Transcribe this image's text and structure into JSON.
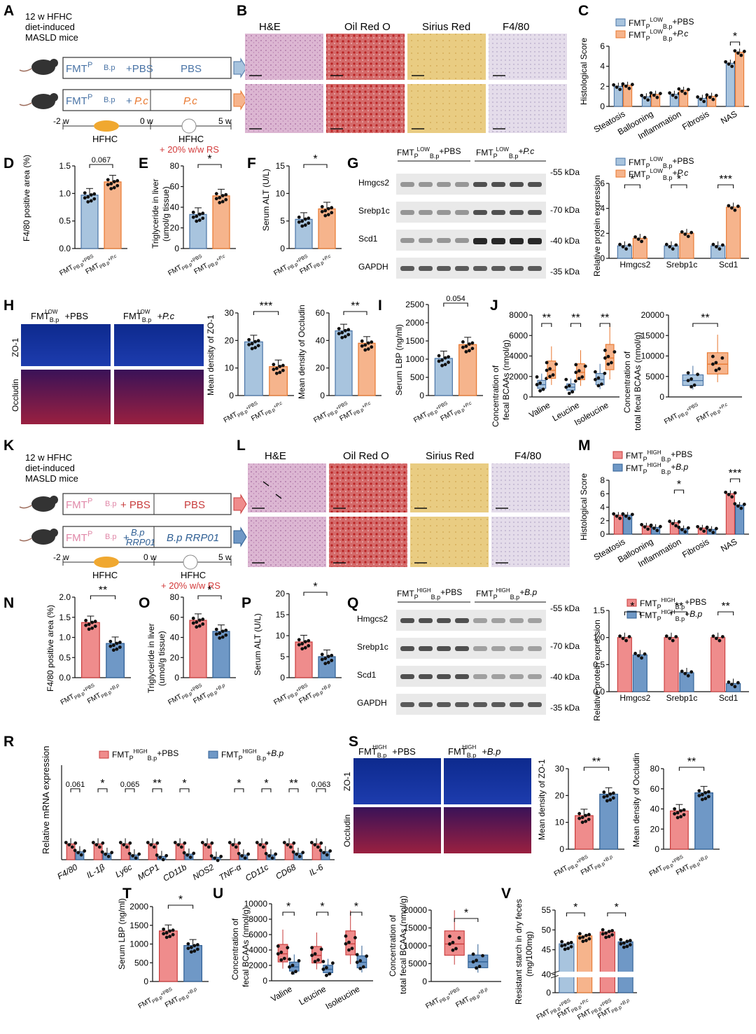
{
  "colors": {
    "blue_fill": "#a8c4de",
    "blue_dark": "#4a74a6",
    "orange_fill": "#f6b48c",
    "orange_dark": "#e8772e",
    "red_fill": "#ef8c8c",
    "red_dark": "#c83c3c",
    "steel_fill": "#6f98c6",
    "steel_dark": "#2f5f94"
  },
  "panels": {
    "A": "A",
    "B": "B",
    "C": "C",
    "D": "D",
    "E": "E",
    "F": "F",
    "G": "G",
    "H": "H",
    "I": "I",
    "J": "J",
    "K": "K",
    "L": "L",
    "M": "M",
    "N": "N",
    "O": "O",
    "P": "P",
    "Q": "Q",
    "R": "R",
    "S": "S",
    "T": "T",
    "U": "U",
    "V": "V"
  },
  "schema_top": {
    "mice_desc_1": "12 w HFHC",
    "mice_desc_2": "diet-induced",
    "mice_desc_3": "MASLD mice",
    "group1_fmt": "FMT",
    "group1_sup": "LOW",
    "group1_sub": "P",
    "group1_sup2": "LOW",
    "group1_sub2": "B.p",
    "group1_add": "+PBS",
    "group1_treat": "PBS",
    "group2_add": "+ ",
    "group2_pc": "P.c",
    "group2_treat": "P.c",
    "t_m2": "-2 w",
    "t_0": "0 w",
    "t_5": "5 w",
    "diet1": "HFHC",
    "diet2": "HFHC",
    "diet2_rs": "+ 20% w/w RS"
  },
  "schema_bottom": {
    "mice_desc_1": "12 w HFHC",
    "mice_desc_2": "diet-induced",
    "mice_desc_3": "MASLD mice",
    "group1_add": "+ PBS",
    "group1_treat": "PBS",
    "group2_add": "+",
    "group2_bp": "B.p",
    "group2_rrp": "RRP01",
    "group2_treat": "B.p RRP01",
    "t_m2": "-2 w",
    "t_0": "0 w",
    "t_5": "5 w",
    "diet1": "HFHC",
    "diet2": "HFHC",
    "diet2_rs": "+ 20% w/w RS"
  },
  "histology_headers": [
    "H&E",
    "Oil Red O",
    "Sirius Red",
    "F4/80"
  ],
  "labels": {
    "fmt": "FMT",
    "p": "P",
    "bp": "B.p",
    "low": "LOW",
    "high": "HIGH",
    "plus_pbs": "+PBS",
    "plus_pc": "+P.c",
    "plus_bp": "+B.p",
    "zo1": "ZO-1",
    "occludin": "Occludin",
    "kda55": "-55 kDa",
    "kda70": "-70 kDa",
    "kda40": "-40 kDa",
    "kda35": "-35 kDa",
    "hmgcs2": "Hmgcs2",
    "srebp1c": "Srebp1c",
    "scd1": "Scd1",
    "gapdh": "GAPDH"
  },
  "y_titles": {
    "histological_score": "Histological Score",
    "f480_area": "F4/80 positive area (%)",
    "tg_liver_1": "Triglyceride in liver",
    "tg_liver_2": "(umol/g tissue)",
    "tg_liver_bottom": "(umol/g tissue)",
    "serum_alt": "Serum ALT (U/L)",
    "rel_protein": "Relative protein expression",
    "zo1_density": "Mean density of ZO-1",
    "occludin_density": "Mean density of Occludin",
    "serum_lbp": "Serum LBP (ng/ml)",
    "fecal_bcaa_1": "Concentration of",
    "fecal_bcaa_2": "fecal BCAAs (nmol/g)",
    "total_bcaa_1": "Concentration of",
    "total_bcaa_2": "total fecal BCAAs (nmol/g)",
    "rel_mrna": "Relative mRNA expression",
    "rs_1": "Resistant starch in dry feces",
    "rs_2": "(mg/100mg)"
  },
  "chart_data": [
    {
      "panel": "C",
      "type": "bar",
      "categories": [
        "Steatosis",
        "Ballooning",
        "Inflammation",
        "Fibrosis",
        "NAS"
      ],
      "series": [
        {
          "values": [
            2.0,
            0.95,
            1.2,
            0.8,
            4.3
          ]
        },
        {
          "values": [
            2.1,
            1.2,
            1.6,
            1.0,
            5.4
          ]
        }
      ],
      "ylim": [
        0,
        6
      ],
      "yticks": [
        0,
        2,
        4,
        6
      ],
      "sig": [
        "*"
      ]
    },
    {
      "panel": "D",
      "type": "bar",
      "values": [
        0.97,
        1.21
      ],
      "ylim": [
        0,
        1.5
      ],
      "yticks": [
        0.0,
        0.5,
        1.0,
        1.5
      ],
      "sig": [
        "0.067"
      ]
    },
    {
      "panel": "E",
      "type": "bar",
      "values": [
        33,
        51
      ],
      "ylim": [
        0,
        80
      ],
      "yticks": [
        0,
        20,
        40,
        60,
        80
      ],
      "sig": [
        "*"
      ]
    },
    {
      "panel": "F",
      "type": "bar",
      "values": [
        5.3,
        7.2
      ],
      "ylim": [
        0,
        15
      ],
      "yticks": [
        0,
        5,
        10,
        15
      ],
      "sig": [
        "*"
      ]
    },
    {
      "panel": "G",
      "type": "bar",
      "categories": [
        "Hmgcs2",
        "Srebp1c",
        "Scd1"
      ],
      "series": [
        {
          "values": [
            1.0,
            1.0,
            1.0
          ]
        },
        {
          "values": [
            1.6,
            2.0,
            4.1
          ]
        }
      ],
      "ylim": [
        0,
        6
      ],
      "yticks": [
        0,
        2,
        4,
        6
      ],
      "sig": [
        "*",
        "*",
        "***"
      ]
    },
    {
      "panel": "H1",
      "type": "bar",
      "values": [
        19.5,
        10.5
      ],
      "ylim": [
        0,
        30
      ],
      "yticks": [
        0,
        10,
        20,
        30
      ],
      "sig": [
        "***"
      ]
    },
    {
      "panel": "H2",
      "type": "bar",
      "values": [
        47,
        38
      ],
      "ylim": [
        0,
        60
      ],
      "yticks": [
        0,
        20,
        40,
        60
      ],
      "sig": [
        "**"
      ]
    },
    {
      "panel": "I",
      "type": "bar",
      "values": [
        1020,
        1400
      ],
      "ylim": [
        0,
        2500
      ],
      "yticks": [
        0,
        500,
        1000,
        1500,
        2000,
        2500
      ],
      "sig": [
        "0.054"
      ]
    },
    {
      "panel": "J1",
      "type": "box",
      "categories": [
        "Valine",
        "Leucine",
        "Isoleucine"
      ],
      "series": [
        {
          "values": [
            1200,
            950,
            1700
          ]
        },
        {
          "values": [
            2600,
            2400,
            3800
          ]
        }
      ],
      "ylim": [
        0,
        8000
      ],
      "yticks": [
        0,
        2000,
        4000,
        6000,
        8000
      ],
      "sig": [
        "**",
        "**",
        "**"
      ]
    },
    {
      "panel": "J2",
      "type": "box",
      "series": [
        {
          "values": [
            4000
          ]
        },
        {
          "values": [
            8000
          ]
        }
      ],
      "ylim": [
        0,
        20000
      ],
      "yticks": [
        0,
        5000,
        10000,
        15000,
        20000
      ],
      "sig": [
        "**"
      ]
    },
    {
      "panel": "M",
      "type": "bar",
      "categories": [
        "Steatosis",
        "Ballooning",
        "Inflammation",
        "Fibrosis",
        "NAS"
      ],
      "series": [
        {
          "values": [
            2.8,
            1.2,
            1.7,
            0.9,
            6.0
          ]
        },
        {
          "values": [
            2.8,
            1.0,
            0.8,
            0.7,
            4.3
          ]
        }
      ],
      "ylim": [
        0,
        8
      ],
      "yticks": [
        0,
        2,
        4,
        6,
        8
      ],
      "sig": [
        "*",
        "***"
      ]
    },
    {
      "panel": "N",
      "type": "bar",
      "values": [
        1.37,
        0.85
      ],
      "ylim": [
        0,
        2.0
      ],
      "yticks": [
        0.0,
        0.5,
        1.0,
        1.5,
        2.0
      ],
      "sig": [
        "**"
      ]
    },
    {
      "panel": "O",
      "type": "bar",
      "values": [
        57,
        46
      ],
      "ylim": [
        0,
        80
      ],
      "yticks": [
        0,
        20,
        40,
        60,
        80
      ],
      "sig": [
        "*"
      ]
    },
    {
      "panel": "P",
      "type": "bar",
      "values": [
        8.5,
        5.0
      ],
      "ylim": [
        0,
        20
      ],
      "yticks": [
        0,
        5,
        10,
        15,
        20
      ],
      "sig": [
        "*"
      ]
    },
    {
      "panel": "Q",
      "type": "bar",
      "categories": [
        "Hmgcs2",
        "Srebp1c",
        "Scd1"
      ],
      "series": [
        {
          "values": [
            1.0,
            1.0,
            1.0
          ]
        },
        {
          "values": [
            0.68,
            0.35,
            0.15
          ]
        }
      ],
      "ylim": [
        0,
        1.5
      ],
      "yticks": [
        0.0,
        0.5,
        1.0,
        1.5
      ],
      "sig": [
        "*",
        "**",
        "**"
      ]
    },
    {
      "panel": "R",
      "type": "bar",
      "categories": [
        "F4/80",
        "IL-1β",
        "Ly6c",
        "MCP1",
        "CD11b",
        "NOS2",
        "TNF-α",
        "CD11c",
        "CD68",
        "IL-6"
      ],
      "series": [
        {
          "values": [
            1,
            1,
            1,
            1,
            1,
            1,
            1,
            1,
            1,
            1
          ]
        },
        {
          "values": [
            0.5,
            0.4,
            0.3,
            0.2,
            0.35,
            0.15,
            0.3,
            0.3,
            0.4,
            0.5
          ]
        }
      ],
      "ylim": [
        0,
        6
      ],
      "sig": [
        "0.061",
        "*",
        "0.065",
        "**",
        "*",
        "",
        "*",
        "*",
        "**",
        "0.063"
      ]
    },
    {
      "panel": "S1",
      "type": "bar",
      "values": [
        12.5,
        20.5
      ],
      "ylim": [
        0,
        30
      ],
      "yticks": [
        0,
        10,
        20,
        30
      ],
      "sig": [
        "**"
      ]
    },
    {
      "panel": "S2",
      "type": "bar",
      "values": [
        38,
        56
      ],
      "ylim": [
        0,
        80
      ],
      "yticks": [
        0,
        20,
        40,
        60,
        80
      ],
      "sig": [
        "**"
      ]
    },
    {
      "panel": "T",
      "type": "bar",
      "values": [
        1350,
        960
      ],
      "ylim": [
        0,
        2000
      ],
      "yticks": [
        0,
        500,
        1000,
        1500,
        2000
      ],
      "sig": [
        "*"
      ]
    },
    {
      "panel": "U1",
      "type": "box",
      "categories": [
        "Valine",
        "Leucine",
        "Isoleucine"
      ],
      "series": [
        {
          "values": [
            3500,
            3300,
            4800
          ]
        },
        {
          "values": [
            1800,
            1500,
            2400
          ]
        }
      ],
      "ylim": [
        0,
        10000
      ],
      "yticks": [
        0,
        2000,
        4000,
        6000,
        8000,
        10000
      ],
      "sig": [
        "*",
        "*",
        "*"
      ]
    },
    {
      "panel": "U2",
      "type": "box",
      "series": [
        {
          "values": [
            10500
          ]
        },
        {
          "values": [
            5500
          ]
        }
      ],
      "ylim": [
        0,
        20000
      ],
      "yticks": [
        0,
        5000,
        10000,
        15000,
        20000
      ],
      "sig": [
        "*"
      ]
    },
    {
      "panel": "V",
      "type": "bar",
      "values": [
        46.5,
        48.5,
        49.5,
        47
      ],
      "ylim": [
        0,
        55
      ],
      "yticks": [
        0,
        40,
        45,
        50,
        55
      ],
      "sig": [
        "*",
        "*"
      ]
    }
  ]
}
